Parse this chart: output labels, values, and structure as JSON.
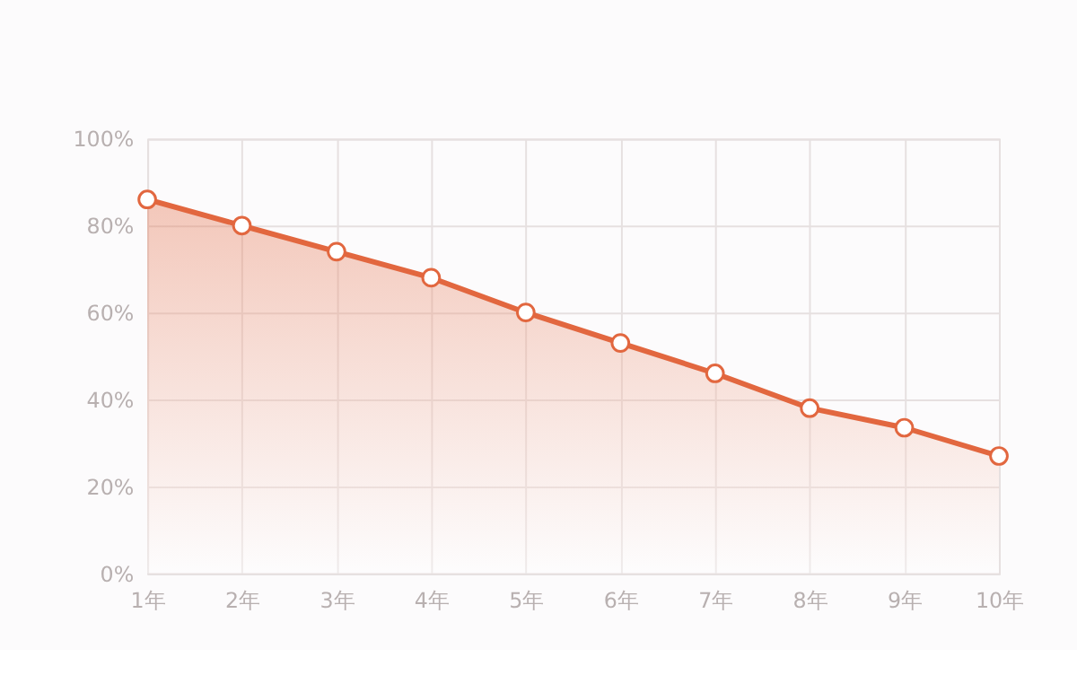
{
  "chart_data": {
    "type": "area",
    "categories": [
      "1年",
      "2年",
      "3年",
      "4年",
      "5年",
      "6年",
      "7年",
      "8年",
      "9年",
      "10年"
    ],
    "series": [
      {
        "color": "#e2673f",
        "values": [
          86,
          80,
          74,
          68,
          60,
          53,
          46,
          38,
          33.5,
          27
        ]
      }
    ],
    "ylim": [
      0,
      100
    ],
    "yticks": [
      {
        "value": 0,
        "label": "0%"
      },
      {
        "value": 20,
        "label": "20%"
      },
      {
        "value": 40,
        "label": "40%"
      },
      {
        "value": 60,
        "label": "60%"
      },
      {
        "value": 80,
        "label": "80%"
      },
      {
        "value": 100,
        "label": "100%"
      }
    ],
    "grid": true,
    "marker": "circle",
    "line_style": "solid"
  }
}
